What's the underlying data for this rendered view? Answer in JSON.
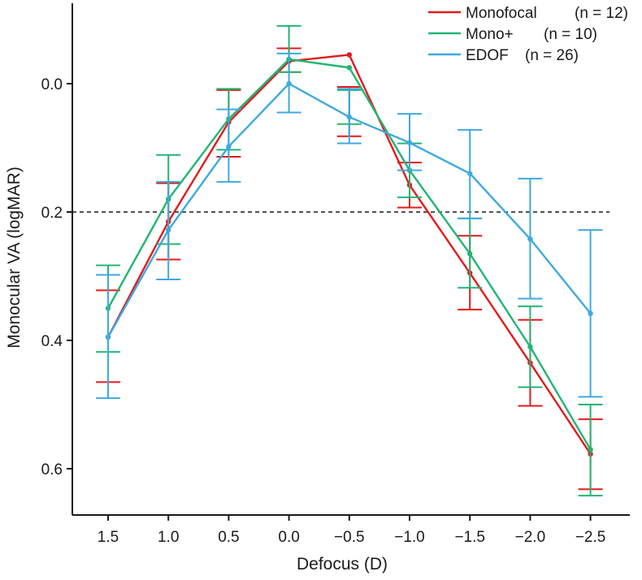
{
  "chart_data": {
    "type": "line",
    "title": "",
    "xlabel": "Defocus (D)",
    "ylabel": "Monocular VA (logMAR)",
    "categories": [
      "1.5",
      "1.0",
      "0.5",
      "0.0",
      "−0.5",
      "−1.0",
      "−1.5",
      "−2.0",
      "−2.5"
    ],
    "ylim": [
      -0.12,
      0.67
    ],
    "y_inverted": true,
    "yticks": [
      0.0,
      0.2,
      0.4,
      0.6
    ],
    "ytick_labels": [
      "0.0",
      "0.2",
      "0.4",
      "0.6"
    ],
    "reference_line": {
      "y": 0.2,
      "style": "dashed"
    },
    "grid": false,
    "legend_position": "top-right",
    "series": [
      {
        "name": "Monofocal",
        "n_label": "(n = 12)",
        "color": "#e31a1c",
        "values": [
          0.395,
          0.215,
          0.06,
          -0.035,
          -0.045,
          0.158,
          0.295,
          0.435,
          0.577
        ],
        "err_low": [
          0.322,
          0.155,
          0.01,
          -0.055,
          0.005,
          0.123,
          0.237,
          0.368,
          0.523
        ],
        "err_high": [
          0.465,
          0.274,
          0.114,
          -0.018,
          0.082,
          0.193,
          0.352,
          0.502,
          0.632
        ]
      },
      {
        "name": "Mono+",
        "n_label": "(n = 10)",
        "color": "#22b573",
        "values": [
          0.35,
          0.18,
          0.055,
          -0.038,
          -0.025,
          0.135,
          0.265,
          0.41,
          0.57
        ],
        "err_low": [
          0.283,
          0.111,
          0.008,
          -0.09,
          0.01,
          0.093,
          0.21,
          0.347,
          0.5
        ],
        "err_high": [
          0.418,
          0.25,
          0.103,
          -0.018,
          0.063,
          0.177,
          0.318,
          0.473,
          0.642
        ]
      },
      {
        "name": "EDOF",
        "n_label": "(n = 26)",
        "color": "#3fa9e0",
        "values": [
          0.395,
          0.228,
          0.098,
          0.0,
          0.052,
          0.092,
          0.14,
          0.242,
          0.358
        ],
        "err_low": [
          0.298,
          0.153,
          0.04,
          -0.047,
          0.008,
          0.047,
          0.072,
          0.148,
          0.228
        ],
        "err_high": [
          0.49,
          0.305,
          0.153,
          0.045,
          0.093,
          0.135,
          0.21,
          0.335,
          0.488
        ]
      }
    ]
  }
}
